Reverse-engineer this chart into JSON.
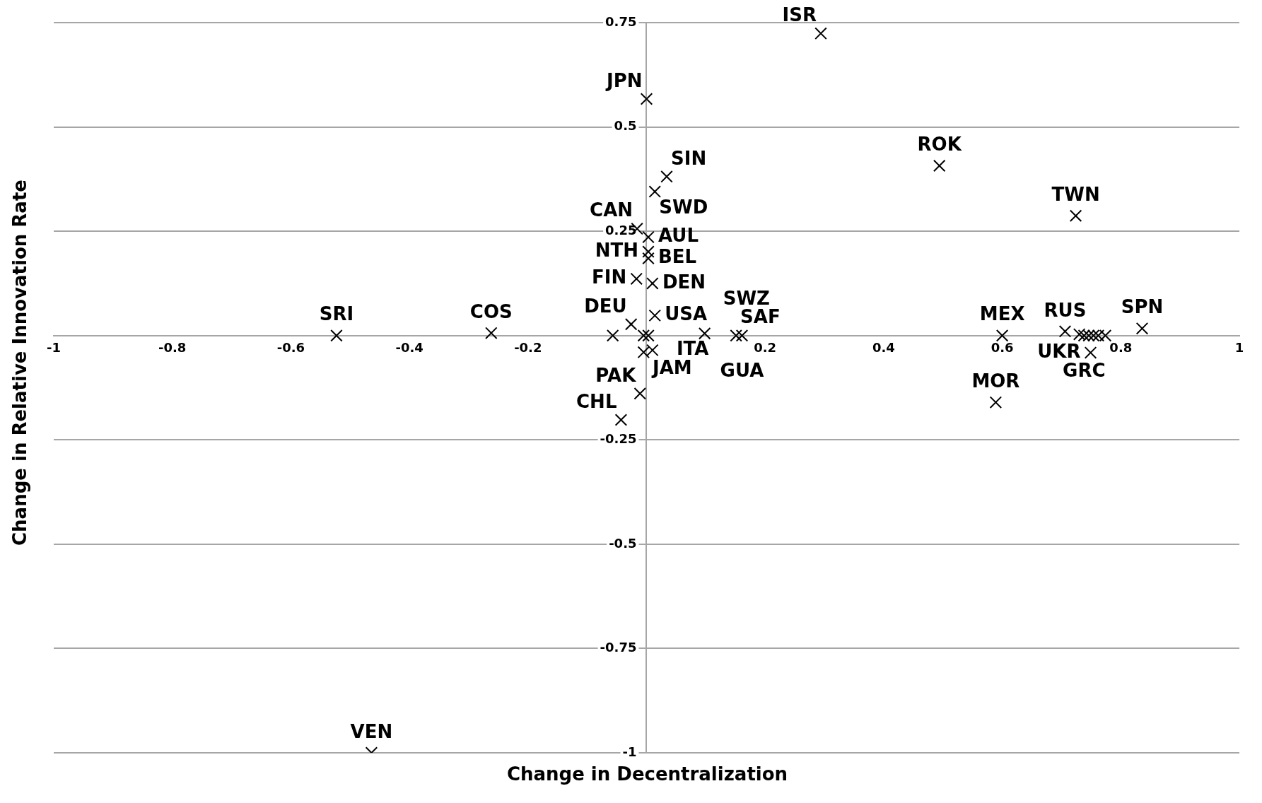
{
  "chart_data": {
    "type": "scatter",
    "xlabel": "Change in Decentralization",
    "ylabel": "Change in Relative Innovation Rate",
    "x": [
      0.294,
      0,
      0.034,
      0.014,
      -0.016,
      0.003,
      0.003,
      0.003,
      -0.017,
      0.01,
      0.014,
      -0.026,
      -0.057,
      -0.005,
      0.003,
      0.098,
      0.151,
      0.161,
      0.01,
      -0.005,
      -0.011,
      -0.043,
      -0.523,
      -0.262,
      -0.464,
      0.494,
      0.724,
      0.6,
      0.589,
      0.749,
      0.836,
      0.706,
      0.73,
      0.738,
      0.746,
      0.754,
      0.762,
      0.774
    ],
    "series": [
      {
        "color": "#000000",
        "values": [
          0.724,
          0.567,
          0.381,
          0.345,
          0.256,
          0.236,
          0.201,
          0.185,
          0.136,
          0.125,
          0.048,
          0.027,
          0,
          0,
          0,
          0.005,
          0,
          0,
          -0.035,
          -0.04,
          -0.139,
          -0.202,
          0,
          0.006,
          -1,
          0.407,
          0.287,
          0,
          -0.16,
          -0.041,
          0.017,
          0.01,
          0.003,
          0,
          0,
          0,
          0,
          0
        ]
      }
    ],
    "annotations": [
      {
        "text": "ISR",
        "x": 0.294,
        "y": 0.724
      },
      {
        "text": "JPN",
        "x": 0,
        "y": 0.567
      },
      {
        "text": "SIN",
        "x": 0.034,
        "y": 0.381
      },
      {
        "text": "SWD",
        "x": 0.014,
        "y": 0.345
      },
      {
        "text": "CAN",
        "x": -0.016,
        "y": 0.256
      },
      {
        "text": "AUL",
        "x": 0.003,
        "y": 0.236
      },
      {
        "text": "NTH",
        "x": 0.003,
        "y": 0.201
      },
      {
        "text": "BEL",
        "x": 0.003,
        "y": 0.185
      },
      {
        "text": "FIN",
        "x": -0.017,
        "y": 0.136
      },
      {
        "text": "DEN",
        "x": 0.01,
        "y": 0.125
      },
      {
        "text": "USA",
        "x": 0.014,
        "y": 0.048
      },
      {
        "text": "DEU",
        "x": -0.026,
        "y": 0.027
      },
      {
        "text": "JAM",
        "x": 0.003,
        "y": 0
      },
      {
        "text": "SWZ",
        "x": 0.098,
        "y": 0.005
      },
      {
        "text": "SAF",
        "x": 0.151,
        "y": 0
      },
      {
        "text": "GUA",
        "x": 0.161,
        "y": 0
      },
      {
        "text": "ITA",
        "x": 0.01,
        "y": -0.035
      },
      {
        "text": "PAK",
        "x": -0.011,
        "y": -0.139
      },
      {
        "text": "CHL",
        "x": -0.043,
        "y": -0.202
      },
      {
        "text": "SRI",
        "x": -0.523,
        "y": 0
      },
      {
        "text": "COS",
        "x": -0.262,
        "y": 0.006
      },
      {
        "text": "VEN",
        "x": -0.464,
        "y": -1
      },
      {
        "text": "ROK",
        "x": 0.494,
        "y": 0.407
      },
      {
        "text": "TWN",
        "x": 0.724,
        "y": 0.287
      },
      {
        "text": "MEX",
        "x": 0.6,
        "y": 0
      },
      {
        "text": "MOR",
        "x": 0.589,
        "y": -0.16
      },
      {
        "text": "UKR",
        "x": 0.749,
        "y": -0.041
      },
      {
        "text": "SPN",
        "x": 0.836,
        "y": 0.017
      },
      {
        "text": "RUS",
        "x": 0.706,
        "y": 0.01
      },
      {
        "text": "GRC",
        "x": 0.738,
        "y": 0
      }
    ],
    "xlim": [
      -1,
      1
    ],
    "xticks": [
      -1,
      -0.8,
      -0.6,
      -0.4,
      -0.2,
      {
        "value": 0,
        "label": null
      },
      0.2,
      0.4,
      0.6,
      0.8,
      1
    ],
    "ylim": [
      -1,
      0.75
    ],
    "yticks": [
      -1,
      -0.75,
      -0.5,
      -0.25,
      {
        "value": 0,
        "label": null
      },
      0.25,
      0.5,
      0.75
    ],
    "grid": "y",
    "marker": "cross"
  }
}
